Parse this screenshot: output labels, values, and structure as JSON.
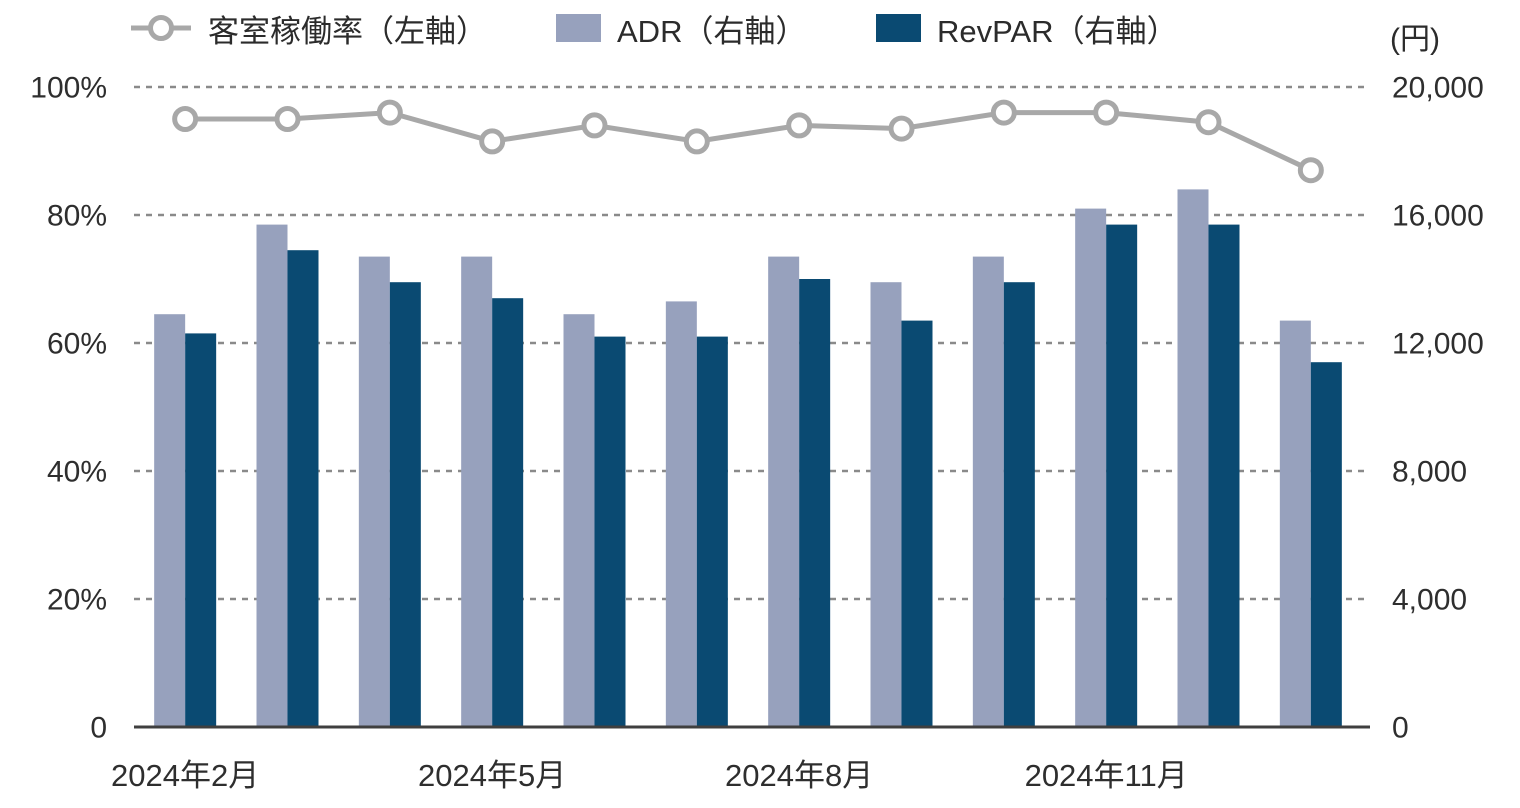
{
  "legend": {
    "items": [
      {
        "label": "客室稼働率（左軸）",
        "marker": "line-circle",
        "color": "#a8a8a8"
      },
      {
        "label": "ADR（右軸）",
        "marker": "square",
        "color": "#97a1bd"
      },
      {
        "label": "RevPAR（右軸）",
        "marker": "square",
        "color": "#0a4a72"
      }
    ],
    "right_axis_unit": "(円)"
  },
  "chart_data": {
    "type": "combo bar+line",
    "categories": [
      "2024年2月",
      "",
      "",
      "2024年5月",
      "",
      "",
      "2024年8月",
      "",
      "",
      "2024年11月",
      "",
      ""
    ],
    "series": [
      {
        "name": "客室稼働率（左軸）",
        "type": "line",
        "axis": "left",
        "unit": "%",
        "color": "#a8a8a8",
        "values": [
          95,
          95,
          96,
          91.5,
          94,
          91.5,
          94,
          93.5,
          96,
          96,
          94.5,
          87
        ]
      },
      {
        "name": "ADR（右軸）",
        "type": "bar",
        "axis": "right",
        "unit": "円",
        "color": "#97a1bd",
        "values": [
          12900,
          15700,
          14700,
          14700,
          12900,
          13300,
          14700,
          13900,
          14700,
          16200,
          16800,
          12700
        ]
      },
      {
        "name": "RevPAR（右軸）",
        "type": "bar",
        "axis": "right",
        "unit": "円",
        "color": "#0a4a72",
        "values": [
          12300,
          14900,
          13900,
          13400,
          12200,
          12200,
          14000,
          12700,
          13900,
          15700,
          15700,
          11400
        ]
      }
    ],
    "left_axis": {
      "tick_labels": [
        "100%",
        "80%",
        "60%",
        "40%",
        "20%",
        "0"
      ],
      "min": 0,
      "max": 100
    },
    "right_axis": {
      "tick_labels": [
        "20,000",
        "16,000",
        "12,000",
        "8,000",
        "4,000",
        "0"
      ],
      "min": 0,
      "max": 20000
    },
    "grid": "horizontal dotted",
    "legend_position": "top"
  },
  "style": {
    "grid_color": "#8a8a8a",
    "axis_color": "#3f3f3f",
    "text_color": "#2e2e2e",
    "marker_fill": "#ffffff"
  }
}
